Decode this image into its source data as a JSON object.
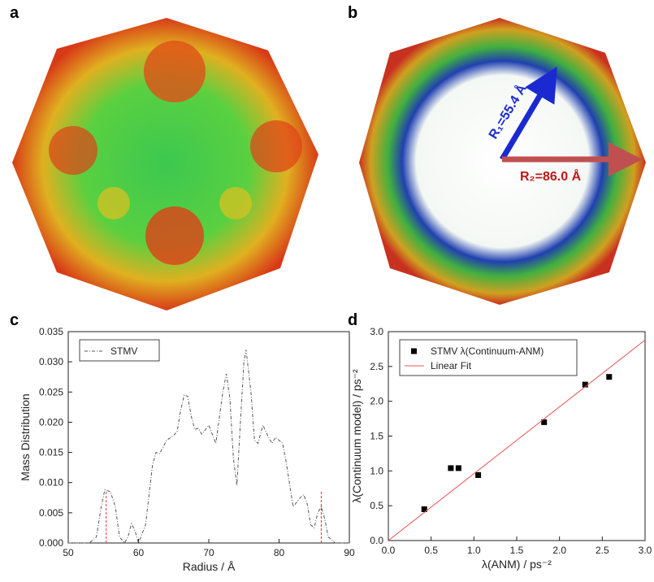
{
  "panel_labels": [
    "a",
    "b",
    "c",
    "d"
  ],
  "image_b": {
    "annotations": [
      "R₁=55.4 Å",
      "R₂=86.0 Å"
    ]
  },
  "chart_data": [
    {
      "type": "line",
      "xlabel": "Radius / Å",
      "ylabel": "Mass Distribution",
      "xlim": [
        50,
        90
      ],
      "xticks": [
        50,
        60,
        70,
        80,
        90
      ],
      "ylim": [
        0,
        0.035
      ],
      "yticks": [
        {
          "value": 0,
          "label": "0.000"
        },
        {
          "value": 0.005,
          "label": "0.005"
        },
        {
          "value": 0.01,
          "label": "0.010"
        },
        {
          "value": 0.015,
          "label": "0.015"
        },
        {
          "value": 0.02,
          "label": "0.020"
        },
        {
          "value": 0.025,
          "label": "0.025"
        },
        {
          "value": 0.03,
          "label": "0.030"
        },
        {
          "value": 0.035,
          "label": "0.035"
        }
      ],
      "legend": "upper left",
      "vlines": [
        55.4,
        86.0
      ],
      "vline_color": "#e03030",
      "series": [
        {
          "name": "STMV",
          "color": "#555555",
          "style": "dashdot",
          "x": [
            50,
            53,
            54,
            54.7,
            55.2,
            56,
            56.7,
            57.3,
            58,
            58.5,
            59,
            59.5,
            60,
            61,
            62,
            62.5,
            63,
            64,
            65,
            65.5,
            66,
            66.5,
            67,
            67.5,
            68,
            68.5,
            69,
            70,
            70.5,
            71,
            72,
            72.5,
            73,
            73.5,
            74,
            74.5,
            75,
            75.3,
            76,
            76.5,
            77,
            77.7,
            78.5,
            79,
            79.5,
            80.5,
            81,
            82,
            83,
            83.5,
            84,
            84.5,
            85,
            85.5,
            86,
            86.5,
            87,
            88,
            90
          ],
          "values": [
            0,
            0,
            0.001,
            0.006,
            0.0088,
            0.0085,
            0.006,
            0.001,
            0,
            0.001,
            0.0032,
            0.002,
            0,
            0.003,
            0.013,
            0.015,
            0.0148,
            0.017,
            0.0178,
            0.0185,
            0.022,
            0.0245,
            0.0243,
            0.021,
            0.0188,
            0.019,
            0.018,
            0.0195,
            0.018,
            0.0165,
            0.025,
            0.028,
            0.024,
            0.014,
            0.0095,
            0.02,
            0.03,
            0.032,
            0.025,
            0.017,
            0.0165,
            0.0195,
            0.0175,
            0.0165,
            0.0175,
            0.0165,
            0.0135,
            0.006,
            0.0075,
            0.008,
            0.0065,
            0.003,
            0.0025,
            0.005,
            0.006,
            0.004,
            0.001,
            0,
            0
          ]
        }
      ]
    },
    {
      "type": "scatter",
      "xlabel": "λ(ANM) / ps⁻²",
      "ylabel": "λ(Continuum model) / ps⁻²",
      "xlim": [
        0,
        3
      ],
      "xticks": [
        {
          "value": 0,
          "label": "0.0"
        },
        {
          "value": 0.5,
          "label": "0.5"
        },
        {
          "value": 1,
          "label": "1.0"
        },
        {
          "value": 1.5,
          "label": "1.5"
        },
        {
          "value": 2,
          "label": "2.0"
        },
        {
          "value": 2.5,
          "label": "2.5"
        },
        {
          "value": 3,
          "label": "3.0"
        }
      ],
      "ylim": [
        0,
        3
      ],
      "yticks": [
        {
          "value": 0,
          "label": "0.0"
        },
        {
          "value": 0.5,
          "label": "0.5"
        },
        {
          "value": 1,
          "label": "1.0"
        },
        {
          "value": 1.5,
          "label": "1.5"
        },
        {
          "value": 2,
          "label": "2.0"
        },
        {
          "value": 2.5,
          "label": "2.5"
        },
        {
          "value": 3,
          "label": "3.0"
        }
      ],
      "legend": "upper left",
      "series": [
        {
          "name": "STMV λ(Continuum-ANM)",
          "color": "#000000",
          "style": "markers",
          "x": [
            0.42,
            0.73,
            0.82,
            1.05,
            1.82,
            2.3,
            2.58
          ],
          "values": [
            0.45,
            1.04,
            1.04,
            0.94,
            1.7,
            2.24,
            2.35
          ]
        },
        {
          "name": "Linear Fit",
          "color": "#e85050",
          "style": "line",
          "x": [
            0,
            3
          ],
          "values": [
            0,
            2.88
          ]
        }
      ]
    }
  ]
}
